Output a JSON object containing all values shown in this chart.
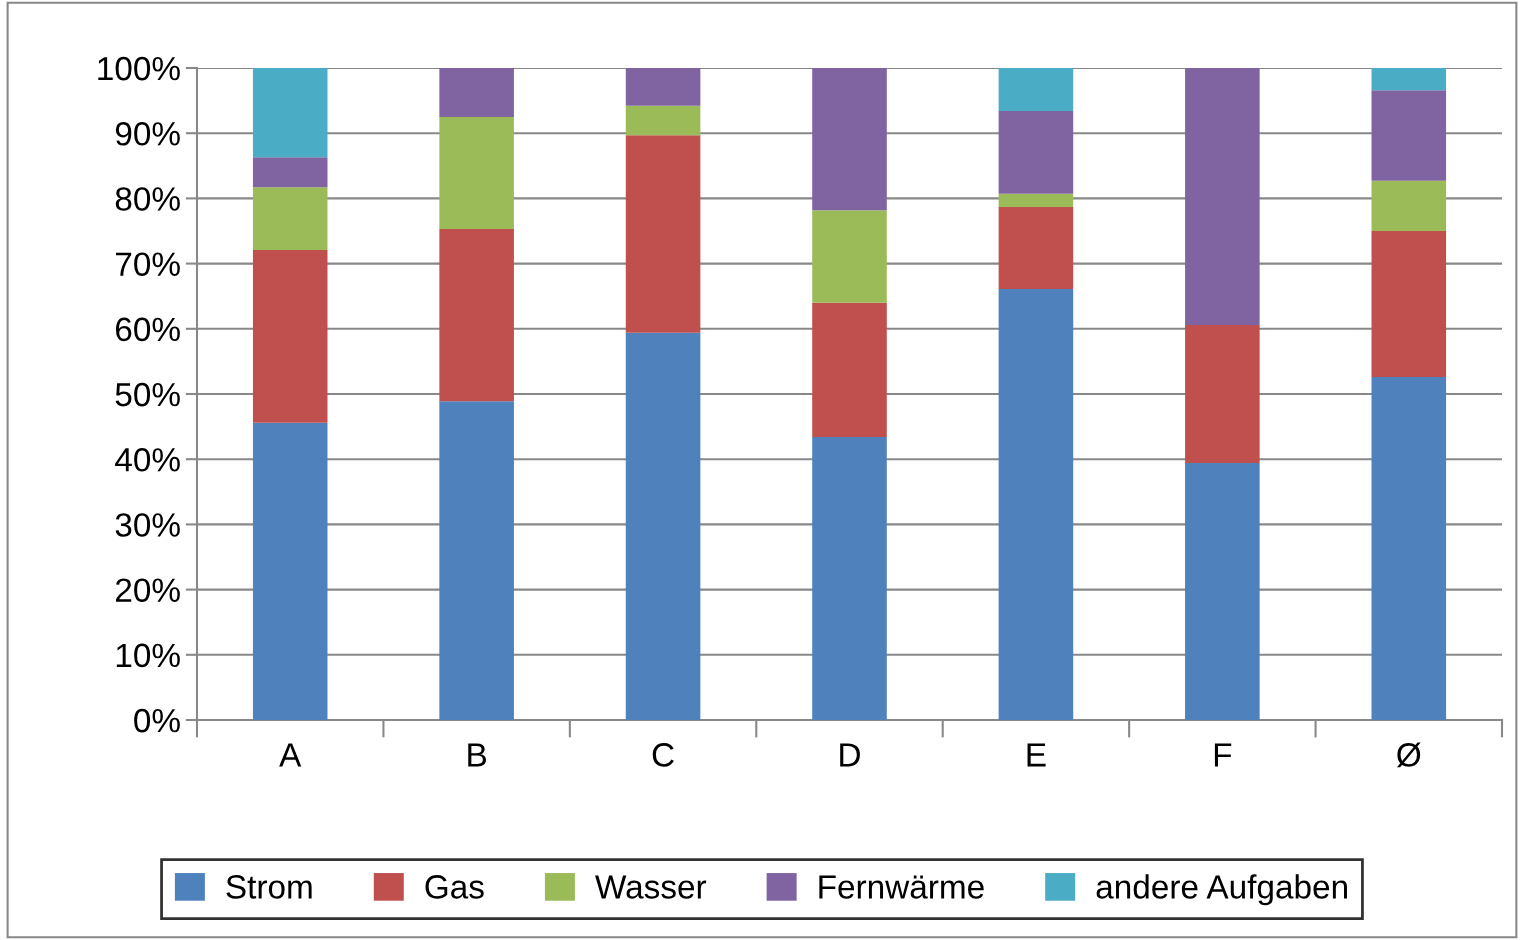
{
  "chart_data": {
    "type": "bar",
    "stacked": true,
    "categories": [
      "A",
      "B",
      "C",
      "D",
      "E",
      "F",
      "Ø"
    ],
    "series": [
      {
        "name": "Strom",
        "color": "#4f81bd",
        "values": [
          45.6,
          48.9,
          59.4,
          43.4,
          66.1,
          39.4,
          52.6
        ]
      },
      {
        "name": "Gas",
        "color": "#c0504d",
        "values": [
          26.5,
          26.4,
          30.3,
          20.6,
          12.6,
          21.2,
          22.4
        ]
      },
      {
        "name": "Wasser",
        "color": "#9bbb59",
        "values": [
          9.6,
          17.2,
          4.5,
          14.2,
          2.0,
          0,
          7.7
        ]
      },
      {
        "name": "Fernwärme",
        "color": "#8064a2",
        "values": [
          4.6,
          7.5,
          5.8,
          21.8,
          12.7,
          39.4,
          13.9
        ]
      },
      {
        "name": "andere Aufgaben",
        "color": "#4bacc6",
        "values": [
          13.7,
          0,
          0,
          0,
          6.6,
          0,
          3.4
        ]
      }
    ],
    "ylim": [
      0,
      100
    ],
    "yticks": [
      {
        "value": 0,
        "label": "0%"
      },
      {
        "value": 10,
        "label": "10%"
      },
      {
        "value": 20,
        "label": "20%"
      },
      {
        "value": 30,
        "label": "30%"
      },
      {
        "value": 40,
        "label": "40%"
      },
      {
        "value": 50,
        "label": "50%"
      },
      {
        "value": 60,
        "label": "60%"
      },
      {
        "value": 70,
        "label": "70%"
      },
      {
        "value": 80,
        "label": "80%"
      },
      {
        "value": 90,
        "label": "90%"
      },
      {
        "value": 100,
        "label": "100%"
      }
    ],
    "grid": "y",
    "legend": "bottom"
  }
}
